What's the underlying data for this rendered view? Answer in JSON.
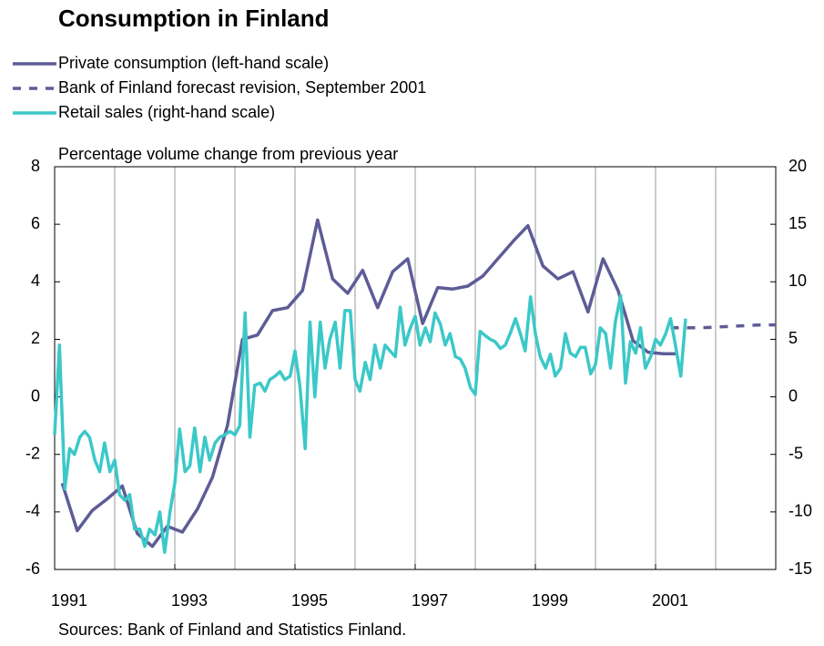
{
  "chart_data": {
    "type": "line",
    "title": "Consumption in Finland",
    "y_label": "Percentage volume change from previous year",
    "source": "Sources: Bank of Finland and Statistics Finland.",
    "xlim": [
      1991,
      2003
    ],
    "xticks": [
      1991,
      1993,
      1995,
      1997,
      1999,
      2001
    ],
    "xgrid": [
      1992,
      1993,
      1994,
      1995,
      1996,
      1997,
      1998,
      1999,
      2000,
      2001,
      2002
    ],
    "ylim": [
      -6,
      8
    ],
    "yticks": [
      -6,
      -4,
      -2,
      0,
      2,
      4,
      6,
      8
    ],
    "y2lim": [
      -15,
      20
    ],
    "y2ticks": [
      -15,
      -10,
      -5,
      0,
      5,
      10,
      15,
      20
    ],
    "series": [
      {
        "name": "Private consumption (left-hand scale)",
        "color": "#5e5c96",
        "dashed": false,
        "x": [
          1991.125,
          1991.375,
          1991.625,
          1991.875,
          1992.125,
          1992.375,
          1992.625,
          1992.875,
          1993.125,
          1993.375,
          1993.625,
          1993.875,
          1994.125,
          1994.375,
          1994.625,
          1994.875,
          1995.125,
          1995.375,
          1995.625,
          1995.875,
          1996.125,
          1996.375,
          1996.625,
          1996.875,
          1997.125,
          1997.375,
          1997.625,
          1997.875,
          1998.125,
          1998.375,
          1998.625,
          1998.875,
          1999.125,
          1999.375,
          1999.625,
          1999.875,
          2000.125,
          2000.375,
          2000.625,
          2000.875,
          2001.125,
          2001.375
        ],
        "values": [
          -3.0,
          -4.65,
          -3.95,
          -3.55,
          -3.1,
          -4.75,
          -5.2,
          -4.5,
          -4.7,
          -3.9,
          -2.8,
          -1.0,
          2.0,
          2.15,
          3.0,
          3.1,
          3.7,
          6.15,
          4.1,
          3.6,
          4.4,
          3.1,
          4.35,
          4.8,
          2.55,
          3.8,
          3.75,
          3.85,
          4.2,
          4.8,
          5.4,
          5.95,
          4.55,
          4.1,
          4.35,
          2.95,
          4.8,
          3.7,
          1.95,
          1.55,
          1.5,
          1.5
        ]
      },
      {
        "name": "Bank of Finland forecast revision, September 2001",
        "color": "#5e5c96",
        "dashed": true,
        "x": [
          2001.25,
          2001.75,
          2002.25,
          2002.75,
          2003
        ],
        "values": [
          2.4,
          2.4,
          2.45,
          2.5,
          2.5
        ]
      },
      {
        "name": "Retail sales (right-hand scale)",
        "color": "#3cc8c8",
        "dashed": false,
        "axis": "y2",
        "x": [
          1991,
          1991.08,
          1991.17,
          1991.25,
          1991.33,
          1991.42,
          1991.5,
          1991.58,
          1991.67,
          1991.75,
          1991.83,
          1991.92,
          1992,
          1992.08,
          1992.17,
          1992.25,
          1992.33,
          1992.42,
          1992.5,
          1992.58,
          1992.67,
          1992.75,
          1992.83,
          1992.92,
          1993,
          1993.08,
          1993.17,
          1993.25,
          1993.33,
          1993.42,
          1993.5,
          1993.58,
          1993.67,
          1993.75,
          1993.83,
          1993.92,
          1994,
          1994.08,
          1994.17,
          1994.25,
          1994.33,
          1994.42,
          1994.5,
          1994.58,
          1994.67,
          1994.75,
          1994.83,
          1994.92,
          1995,
          1995.08,
          1995.17,
          1995.25,
          1995.33,
          1995.42,
          1995.5,
          1995.58,
          1995.67,
          1995.75,
          1995.83,
          1995.92,
          1996,
          1996.08,
          1996.17,
          1996.25,
          1996.33,
          1996.42,
          1996.5,
          1996.58,
          1996.67,
          1996.75,
          1996.83,
          1996.92,
          1997,
          1997.08,
          1997.17,
          1997.25,
          1997.33,
          1997.42,
          1997.5,
          1997.58,
          1997.67,
          1997.75,
          1997.83,
          1997.92,
          1998,
          1998.08,
          1998.17,
          1998.25,
          1998.33,
          1998.42,
          1998.5,
          1998.58,
          1998.67,
          1998.75,
          1998.83,
          1998.92,
          1999,
          1999.08,
          1999.17,
          1999.25,
          1999.33,
          1999.42,
          1999.5,
          1999.58,
          1999.67,
          1999.75,
          1999.83,
          1999.92,
          2000,
          2000.08,
          2000.17,
          2000.25,
          2000.33,
          2000.42,
          2000.5,
          2000.58,
          2000.67,
          2000.75,
          2000.83,
          2000.92,
          2001,
          2001.08,
          2001.17,
          2001.25,
          2001.33,
          2001.42,
          2001.5
        ],
        "values": [
          -3.3,
          4.5,
          -8,
          -4.5,
          -5,
          -3.5,
          -3,
          -3.5,
          -5.5,
          -6.5,
          -4,
          -6.5,
          -5.5,
          -8.5,
          -9,
          -8.5,
          -11.5,
          -11.5,
          -13,
          -11.5,
          -12,
          -10,
          -13.5,
          -10,
          -7.5,
          -2.8,
          -6.5,
          -6,
          -2.7,
          -6.5,
          -3.5,
          -5.5,
          -4,
          -3.5,
          -3.3,
          -3,
          -3.3,
          -2.5,
          7.3,
          -3.5,
          1,
          1.2,
          0.5,
          1.5,
          1.8,
          2.2,
          1.5,
          1.8,
          4,
          1,
          -4.5,
          6.5,
          0,
          6.5,
          2.5,
          5,
          6.5,
          2.5,
          7.5,
          7.5,
          1.5,
          0.5,
          3,
          1.5,
          4.5,
          2.5,
          4.5,
          4,
          3.5,
          7.8,
          4.5,
          6,
          7,
          4.5,
          6,
          4.8,
          7.3,
          6.3,
          4.5,
          5.5,
          3.5,
          3.3,
          2.5,
          0.8,
          0.2,
          5.7,
          5.3,
          5,
          4.8,
          4.2,
          4.5,
          5.5,
          6.8,
          5.5,
          4,
          8.7,
          5.5,
          3.5,
          2.5,
          3.7,
          1.8,
          2.5,
          5.5,
          3.8,
          3.5,
          4.3,
          4.3,
          2,
          2.8,
          6,
          5.5,
          2.5,
          6.5,
          8.8,
          1.2,
          4.8,
          3.8,
          6,
          2.5,
          3.5,
          5,
          4.5,
          5.5,
          6.8,
          4.5,
          1.8,
          6.8
        ]
      }
    ]
  }
}
